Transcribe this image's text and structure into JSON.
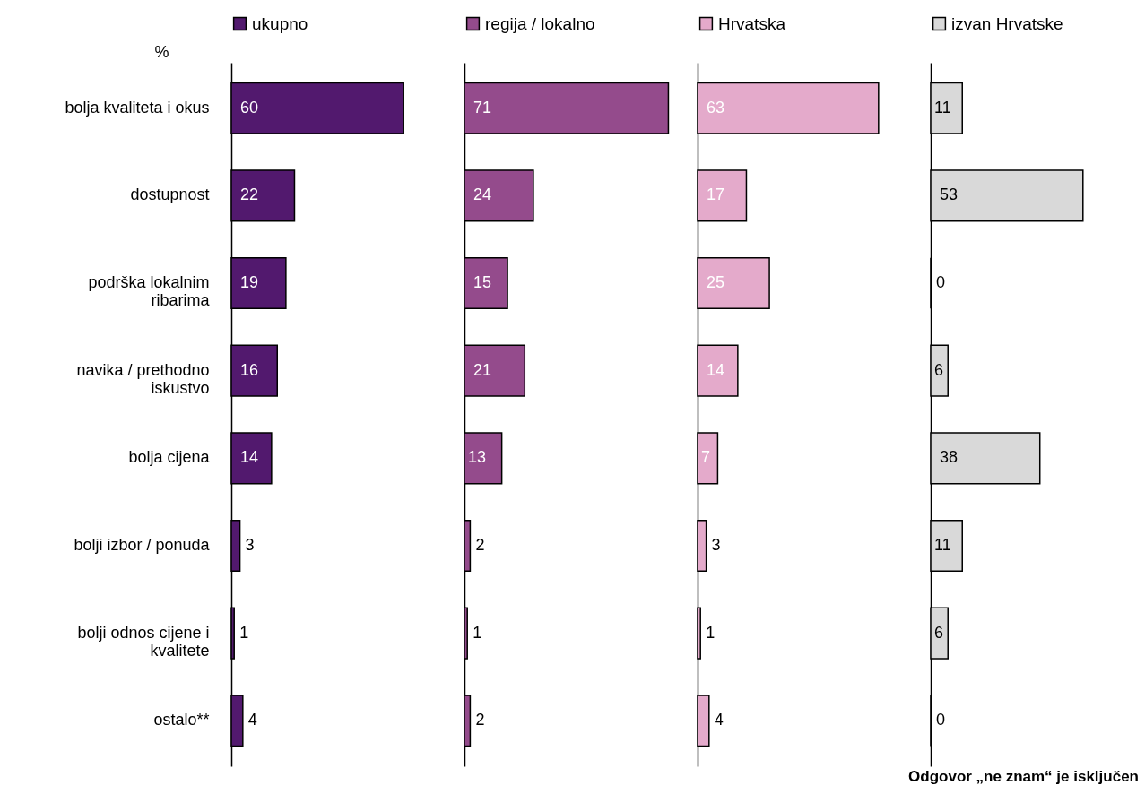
{
  "chart_data": [
    {
      "type": "bar",
      "orientation": "horizontal",
      "ylabel": "%",
      "categories": [
        "bolja kvaliteta i okus",
        "dostupnost",
        "podrška lokalnim ribarima",
        "navika / prethodno iskustvo",
        "bolja cijena",
        "bolji izbor / ponuda",
        "bolji odnos cijene i kvalitete",
        "ostalo**"
      ],
      "series": [
        {
          "name": "ukupno",
          "color": "#52196e",
          "values": [
            60,
            22,
            19,
            16,
            14,
            3,
            1,
            4
          ]
        }
      ],
      "data_labels": true,
      "legend": "top",
      "tick_labels": "y"
    },
    {
      "type": "bar",
      "orientation": "horizontal",
      "categories": [
        null,
        null,
        null,
        null,
        null,
        null,
        null,
        null
      ],
      "series": [
        {
          "name": "regija / lokalno",
          "color": "#944b8c",
          "values": [
            71,
            24,
            15,
            21,
            13,
            2,
            1,
            2
          ]
        }
      ],
      "data_labels": true,
      "legend": "top",
      "tick_labels": false
    },
    {
      "type": "bar",
      "orientation": "horizontal",
      "categories": [
        null,
        null,
        null,
        null,
        null,
        null,
        null,
        null
      ],
      "series": [
        {
          "name": "Hrvatska",
          "color": "#e4aacb",
          "values": [
            63,
            17,
            25,
            14,
            7,
            3,
            1,
            4
          ]
        }
      ],
      "data_labels": true,
      "legend": "top",
      "tick_labels": false
    },
    {
      "type": "bar",
      "orientation": "horizontal",
      "categories": [
        null,
        null,
        null,
        null,
        null,
        null,
        null,
        null
      ],
      "series": [
        {
          "name": "izvan Hrvatske",
          "color": "#d9d9d9",
          "values": [
            11,
            53,
            0,
            6,
            38,
            11,
            6,
            0
          ]
        }
      ],
      "data_labels": true,
      "legend": "top",
      "tick_labels": false,
      "annotations": [
        "Odgovor „ne znam“ je isključen"
      ]
    }
  ]
}
